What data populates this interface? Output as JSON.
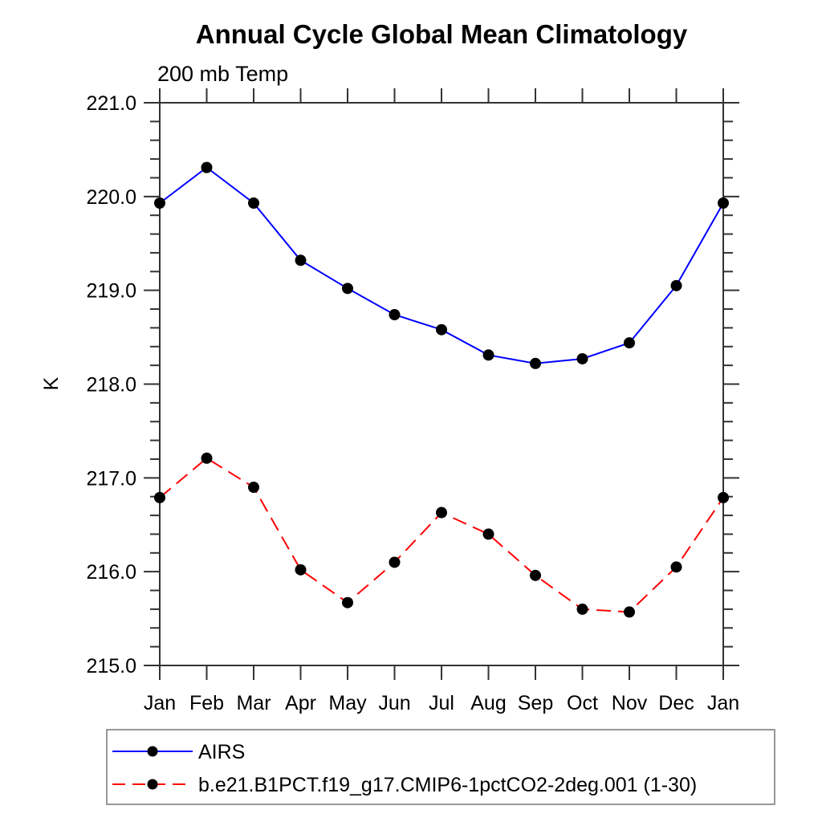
{
  "chart_data": {
    "type": "line",
    "title": "Annual Cycle Global Mean Climatology",
    "subtitle": "200 mb Temp",
    "ylabel": "K",
    "xlabel": "",
    "ylim": [
      215.0,
      221.0
    ],
    "y_major_step": 1.0,
    "y_minor_step": 0.2,
    "y_tick_labels": [
      "215.0",
      "216.0",
      "217.0",
      "218.0",
      "219.0",
      "220.0",
      "221.0"
    ],
    "x_tick_labels": [
      "Jan",
      "Feb",
      "Mar",
      "Apr",
      "May",
      "Jun",
      "Jul",
      "Aug",
      "Sep",
      "Oct",
      "Nov",
      "Dec",
      "Jan"
    ],
    "grid": false,
    "legend_position": "bottom-left",
    "series": [
      {
        "name": "AIRS",
        "color": "#0000ff",
        "line_style": "solid",
        "marker": "filled-circle",
        "marker_color": "#000000",
        "values": [
          219.93,
          220.31,
          219.93,
          219.32,
          219.02,
          218.74,
          218.58,
          218.31,
          218.22,
          218.27,
          218.44,
          219.05,
          219.93
        ]
      },
      {
        "name": "b.e21.B1PCT.f19_g17.CMIP6-1pctCO2-2deg.001 (1-30)",
        "color": "#ff0000",
        "line_style": "dashed",
        "marker": "filled-circle",
        "marker_color": "#000000",
        "values": [
          216.79,
          217.21,
          216.9,
          216.02,
          215.67,
          216.1,
          216.63,
          216.4,
          215.96,
          215.6,
          215.57,
          216.05,
          216.79
        ]
      }
    ]
  }
}
